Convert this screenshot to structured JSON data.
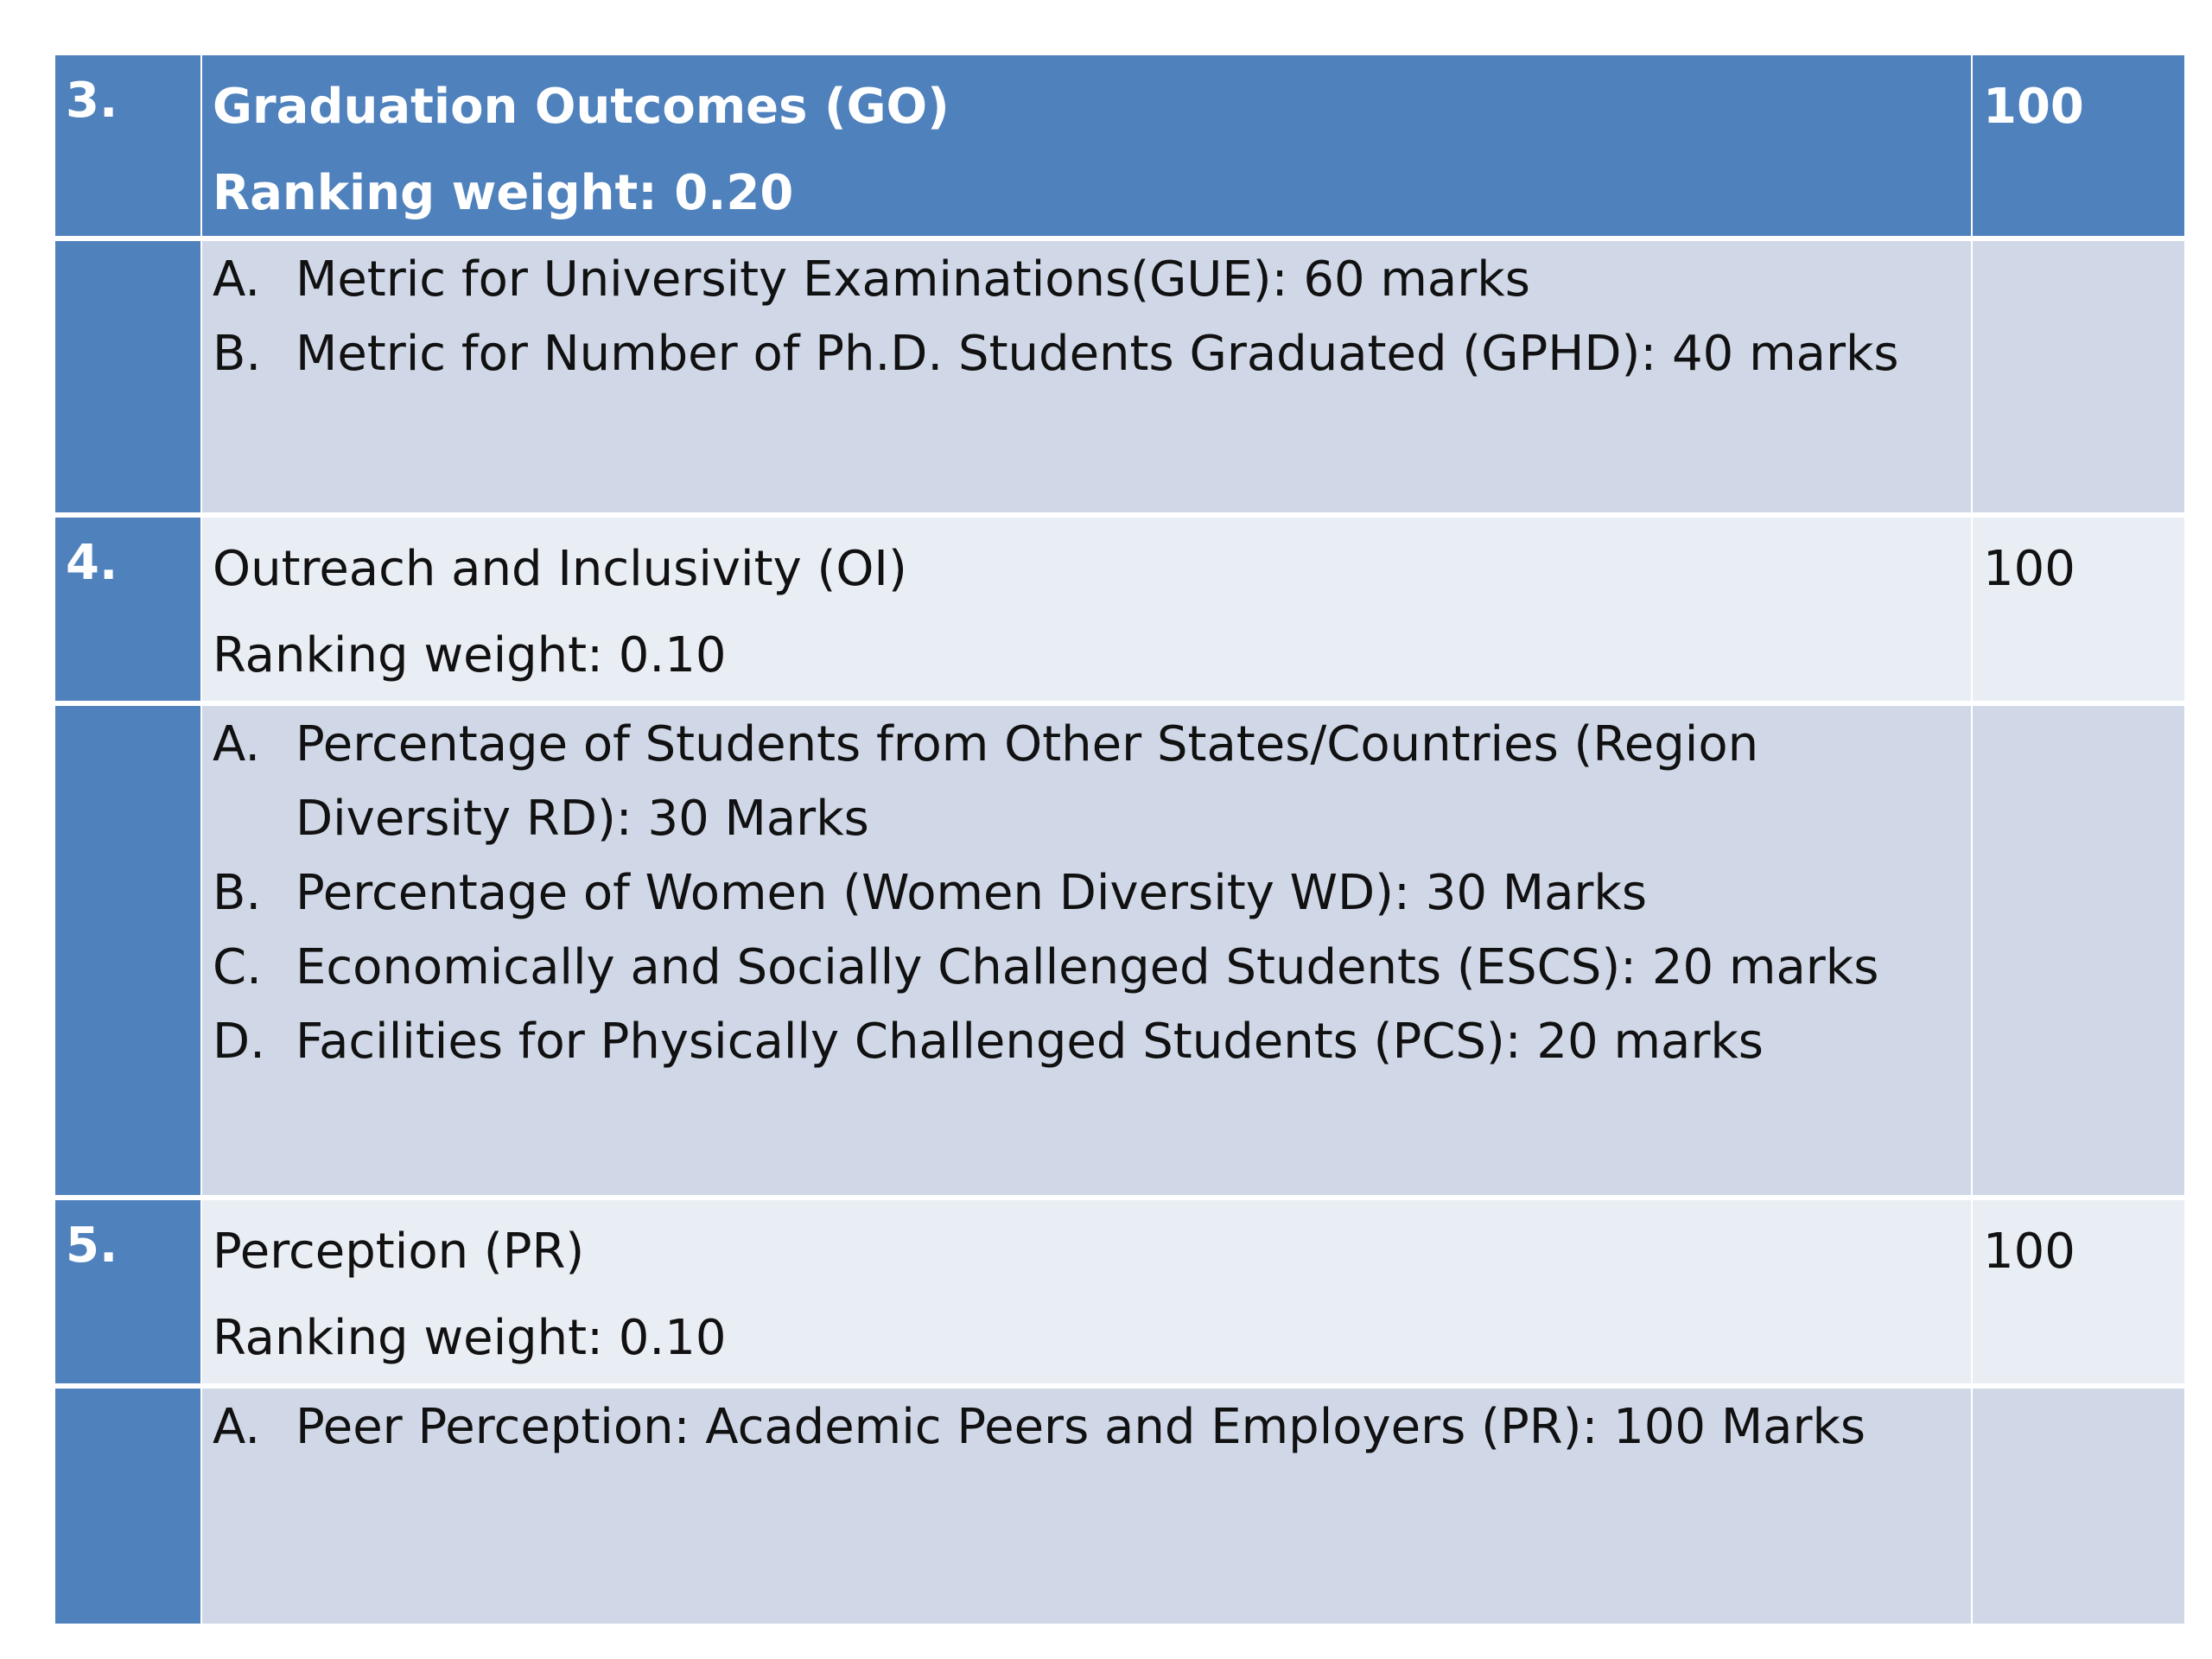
{
  "rows": [
    {
      "number": "3.",
      "title": "Graduation Outcomes (GO)",
      "weight": "Ranking weight: 0.20",
      "marks": "100",
      "items": [
        {
          "letter": "A.",
          "text": "Metric for University Examinations(GUE): 60 marks"
        },
        {
          "letter": "B.",
          "text": "Metric for Number of Ph.D. Students Graduated (GPHD): 40 marks"
        }
      ]
    },
    {
      "number": "4.",
      "title": "Outreach and Inclusivity (OI)",
      "weight": "Ranking weight: 0.10",
      "marks": "100",
      "items": [
        {
          "letter": "A.",
          "text": "Percentage of Students from Other States/Countries (Region Diversity RD): 30 Marks"
        },
        {
          "letter": "B.",
          "text": "Percentage of Women (Women Diversity WD): 30 Marks"
        },
        {
          "letter": "C.",
          "text": "Economically and Socially Challenged Students (ESCS): 20 marks"
        },
        {
          "letter": "D.",
          "text": " Facilities for Physically Challenged Students (PCS): 20 marks"
        }
      ]
    },
    {
      "number": "5.",
      "title": "Perception (PR)",
      "weight": "Ranking weight: 0.10",
      "marks": "100",
      "items": [
        {
          "letter": "A.",
          "text": "Peer Perception:  Academic Peers and Employers (PR): 100 Marks"
        }
      ]
    }
  ]
}
